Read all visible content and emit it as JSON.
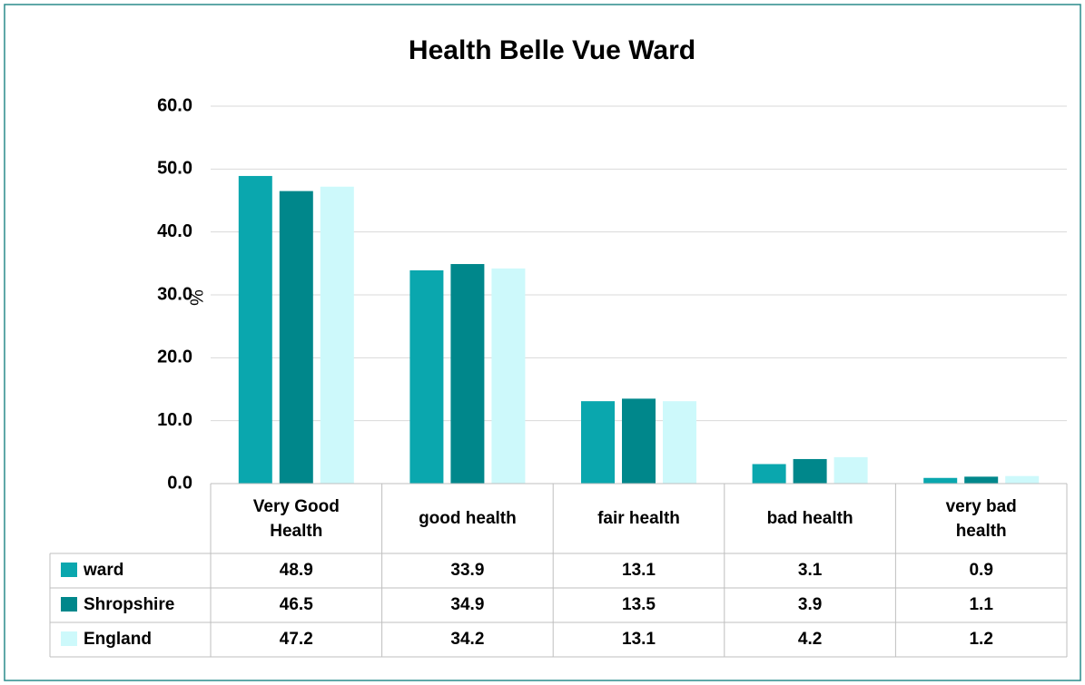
{
  "chart_data": {
    "type": "bar",
    "title": "Health Belle Vue Ward",
    "y_label": "%",
    "categories": [
      "Very Good Health",
      "good health",
      "fair health",
      "bad health",
      "very bad health"
    ],
    "series": [
      {
        "name": "ward",
        "color": "#0aa7ae",
        "values": [
          48.9,
          33.9,
          13.1,
          3.1,
          0.9
        ]
      },
      {
        "name": "Shropshire",
        "color": "#00878b",
        "values": [
          46.5,
          34.9,
          13.5,
          3.9,
          1.1
        ]
      },
      {
        "name": "England",
        "color": "#cdf9fb",
        "values": [
          47.2,
          34.2,
          13.1,
          4.2,
          1.2
        ]
      }
    ],
    "ylim": [
      0,
      60
    ],
    "yticks": [
      {
        "value": 0,
        "label": "0.0"
      },
      {
        "value": 10,
        "label": "10.0"
      },
      {
        "value": 20,
        "label": "20.0"
      },
      {
        "value": 30,
        "label": "30.0"
      },
      {
        "value": 40,
        "label": "40.0"
      },
      {
        "value": 50,
        "label": "50.0"
      },
      {
        "value": 60,
        "label": "60.0"
      }
    ],
    "grid": true,
    "data_table": true
  }
}
